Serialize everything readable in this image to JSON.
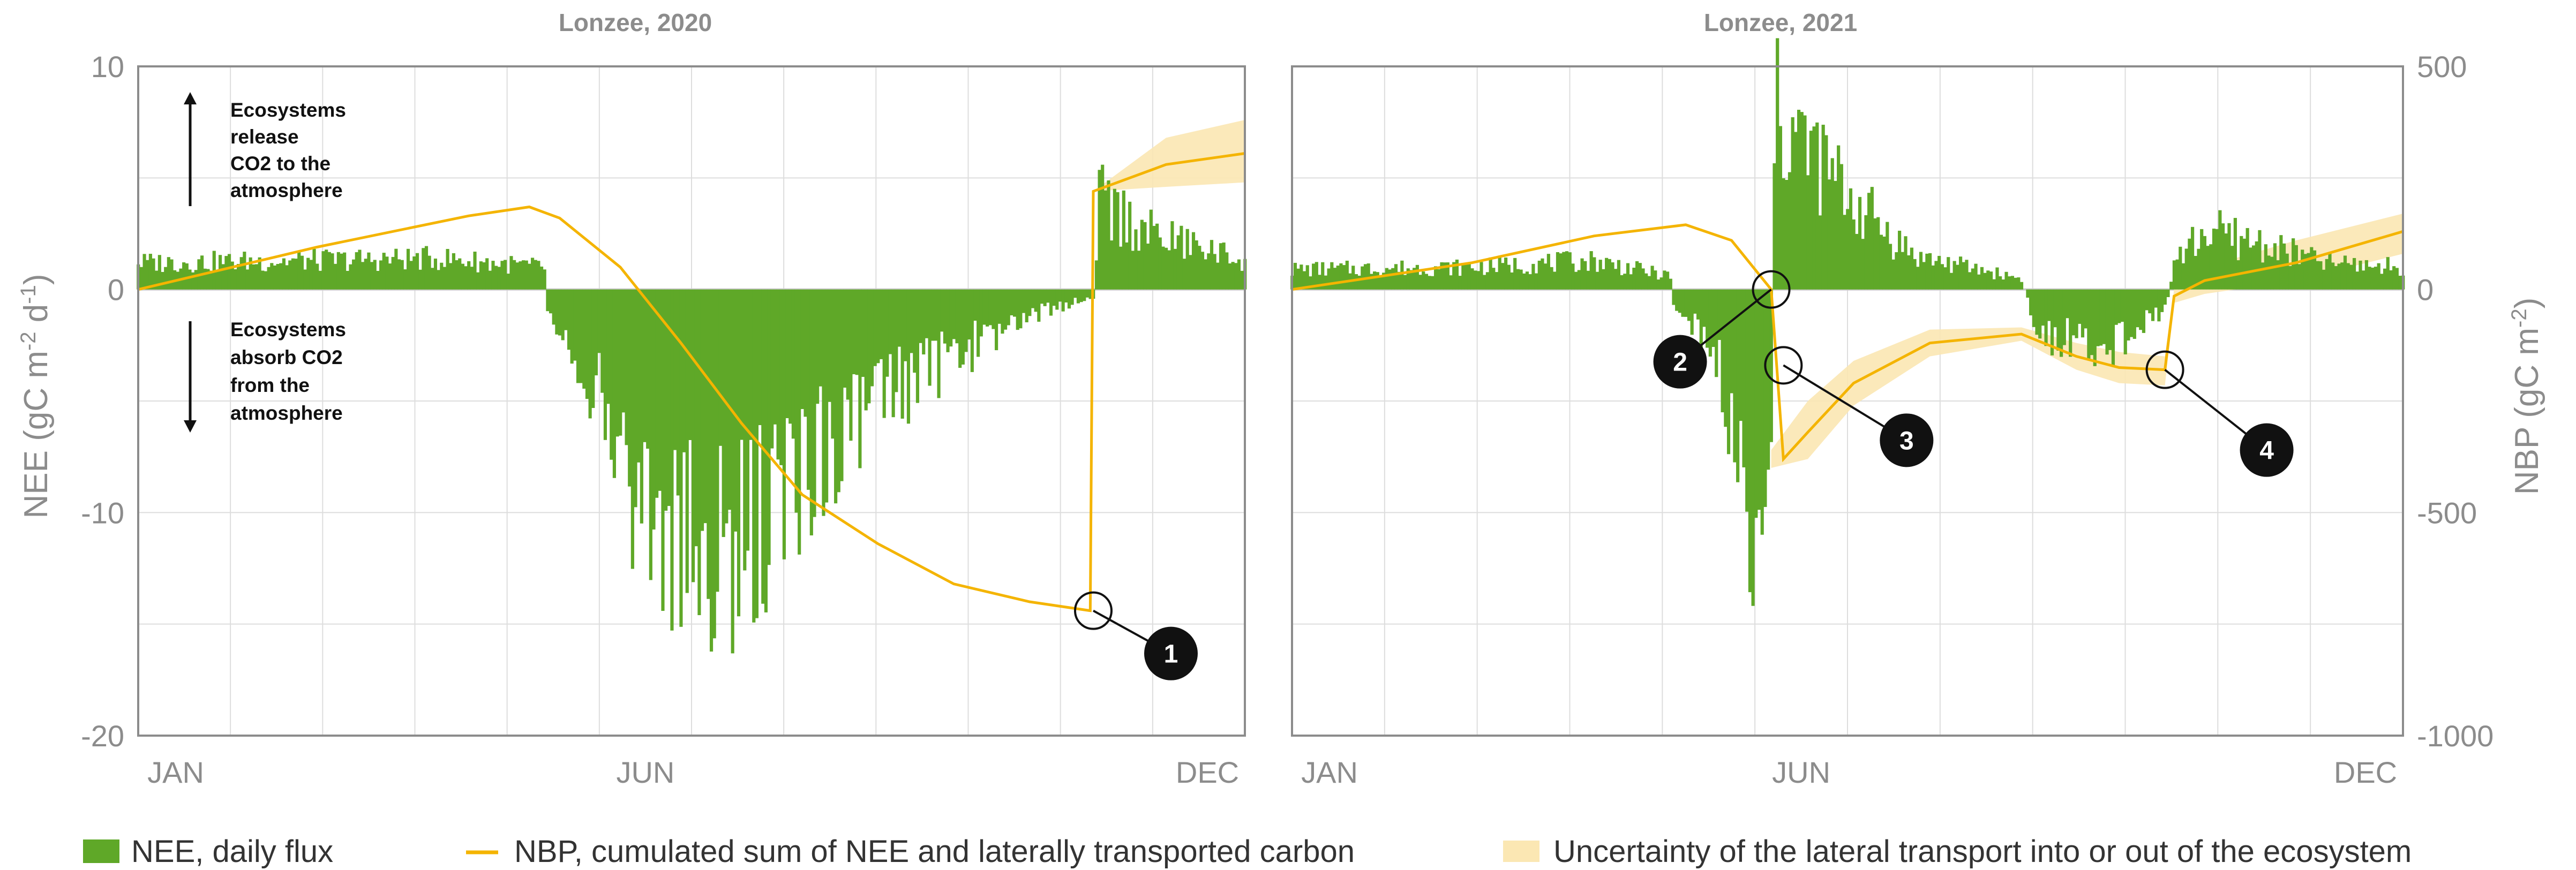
{
  "colors": {
    "nee": "#5fa828",
    "nbp": "#f4b400",
    "uncertainty": "#fbe7b3",
    "grid": "#dddddd",
    "axis": "#8c8c8c",
    "marker": "#111111"
  },
  "legend": {
    "nee": "NEE, daily flux",
    "nbp": "NBP, cumulated sum of NEE and laterally transported carbon",
    "uncertainty": "Uncertainty of the lateral transport into or out of the ecosystem"
  },
  "chart_data": [
    {
      "type": "bar",
      "title": "Lonzee, 2020",
      "ylabel_left": "NEE (gC m-2 d-1)",
      "ylim_left": [
        -20,
        10
      ],
      "yticks_left": [
        "10",
        "0",
        "-10",
        "-20"
      ],
      "ylim_right": [
        -1000,
        500
      ],
      "xlim_days": [
        1,
        366
      ],
      "month_labels": [
        "JAN",
        "JUN",
        "DEC"
      ],
      "annotation_release": [
        "Ecosystems",
        "release",
        "CO2 to the",
        "atmosphere"
      ],
      "annotation_absorb": [
        "Ecosystems",
        "absorb CO2",
        "from the",
        "atmosphere"
      ],
      "nee_profile": [
        {
          "day": 1,
          "value": 1.2
        },
        {
          "day": 60,
          "value": 1.3
        },
        {
          "day": 100,
          "value": 1.4
        },
        {
          "day": 135,
          "value": 1.0
        },
        {
          "day": 136,
          "value": -0.8
        },
        {
          "day": 150,
          "value": -4
        },
        {
          "day": 165,
          "value": -9
        },
        {
          "day": 180,
          "value": -12
        },
        {
          "day": 200,
          "value": -12
        },
        {
          "day": 220,
          "value": -8
        },
        {
          "day": 245,
          "value": -5
        },
        {
          "day": 270,
          "value": -3
        },
        {
          "day": 295,
          "value": -1.2
        },
        {
          "day": 316,
          "value": -0.3
        },
        {
          "day": 318,
          "value": 4.0
        },
        {
          "day": 335,
          "value": 2.5
        },
        {
          "day": 366,
          "value": 1.3
        }
      ],
      "nbp_series": [
        {
          "day": 1,
          "value": 0
        },
        {
          "day": 60,
          "value": 95
        },
        {
          "day": 110,
          "value": 165
        },
        {
          "day": 130,
          "value": 185
        },
        {
          "day": 140,
          "value": 160
        },
        {
          "day": 160,
          "value": 50
        },
        {
          "day": 180,
          "value": -120
        },
        {
          "day": 200,
          "value": -300
        },
        {
          "day": 220,
          "value": -460
        },
        {
          "day": 245,
          "value": -570
        },
        {
          "day": 270,
          "value": -660
        },
        {
          "day": 295,
          "value": -700
        },
        {
          "day": 315,
          "value": -720
        },
        {
          "day": 316,
          "value": 220
        },
        {
          "day": 340,
          "value": 280
        },
        {
          "day": 366,
          "value": 305
        }
      ],
      "uncertainty_band": [
        {
          "day": 316,
          "low": 220,
          "high": 220
        },
        {
          "day": 340,
          "low": 230,
          "high": 340
        },
        {
          "day": 366,
          "low": 240,
          "high": 380
        }
      ],
      "markers": [
        {
          "label": "1",
          "day": 316,
          "value": -720
        }
      ]
    },
    {
      "type": "bar",
      "title": "Lonzee, 2021",
      "ylabel_right": "NBP (gC m-2)",
      "ylim_left": [
        -20,
        10
      ],
      "ylim_right": [
        -1000,
        500
      ],
      "yticks_right": [
        "500",
        "0",
        "-500",
        "-1000"
      ],
      "xlim_days": [
        1,
        365
      ],
      "month_labels": [
        "JAN",
        "JUN",
        "DEC"
      ],
      "nee_profile": [
        {
          "day": 1,
          "value": 0.9
        },
        {
          "day": 60,
          "value": 1.0
        },
        {
          "day": 100,
          "value": 1.3
        },
        {
          "day": 125,
          "value": 0.6
        },
        {
          "day": 126,
          "value": -0.6
        },
        {
          "day": 140,
          "value": -3
        },
        {
          "day": 150,
          "value": -9
        },
        {
          "day": 152,
          "value": -12
        },
        {
          "day": 158,
          "value": -6
        },
        {
          "day": 159,
          "value": 8
        },
        {
          "day": 165,
          "value": 7
        },
        {
          "day": 185,
          "value": 4
        },
        {
          "day": 205,
          "value": 1.5
        },
        {
          "day": 240,
          "value": 0.5
        },
        {
          "day": 245,
          "value": -2
        },
        {
          "day": 270,
          "value": -2.5
        },
        {
          "day": 287,
          "value": -1
        },
        {
          "day": 290,
          "value": 1.2
        },
        {
          "day": 300,
          "value": 2.6
        },
        {
          "day": 320,
          "value": 2.0
        },
        {
          "day": 340,
          "value": 1.2
        },
        {
          "day": 365,
          "value": 1.0
        }
      ],
      "nbp_series": [
        {
          "day": 1,
          "value": 0
        },
        {
          "day": 60,
          "value": 60
        },
        {
          "day": 100,
          "value": 120
        },
        {
          "day": 130,
          "value": 145
        },
        {
          "day": 145,
          "value": 110
        },
        {
          "day": 158,
          "value": 0
        },
        {
          "day": 162,
          "value": -380
        },
        {
          "day": 170,
          "value": -320
        },
        {
          "day": 185,
          "value": -210
        },
        {
          "day": 210,
          "value": -120
        },
        {
          "day": 240,
          "value": -100
        },
        {
          "day": 258,
          "value": -150
        },
        {
          "day": 272,
          "value": -175
        },
        {
          "day": 287,
          "value": -180
        },
        {
          "day": 290,
          "value": -15
        },
        {
          "day": 300,
          "value": 20
        },
        {
          "day": 330,
          "value": 60
        },
        {
          "day": 365,
          "value": 130
        }
      ],
      "uncertainty_band": [
        {
          "day": 158,
          "low": -400,
          "high": -360
        },
        {
          "day": 170,
          "low": -380,
          "high": -250
        },
        {
          "day": 185,
          "low": -260,
          "high": -160
        },
        {
          "day": 210,
          "low": -150,
          "high": -90
        },
        {
          "day": 240,
          "low": -115,
          "high": -85
        },
        {
          "day": 258,
          "low": -180,
          "high": -120
        },
        {
          "day": 272,
          "low": -210,
          "high": -140
        },
        {
          "day": 287,
          "low": -215,
          "high": -150
        },
        {
          "day": 290,
          "low": -30,
          "high": 0
        },
        {
          "day": 300,
          "low": -10,
          "high": 50
        },
        {
          "day": 330,
          "low": 20,
          "high": 110
        },
        {
          "day": 365,
          "low": 80,
          "high": 170
        }
      ],
      "markers": [
        {
          "label": "2",
          "day": 158,
          "value": 0
        },
        {
          "label": "3",
          "day": 162,
          "value": -170
        },
        {
          "label": "4",
          "day": 287,
          "value": -180
        }
      ]
    }
  ]
}
